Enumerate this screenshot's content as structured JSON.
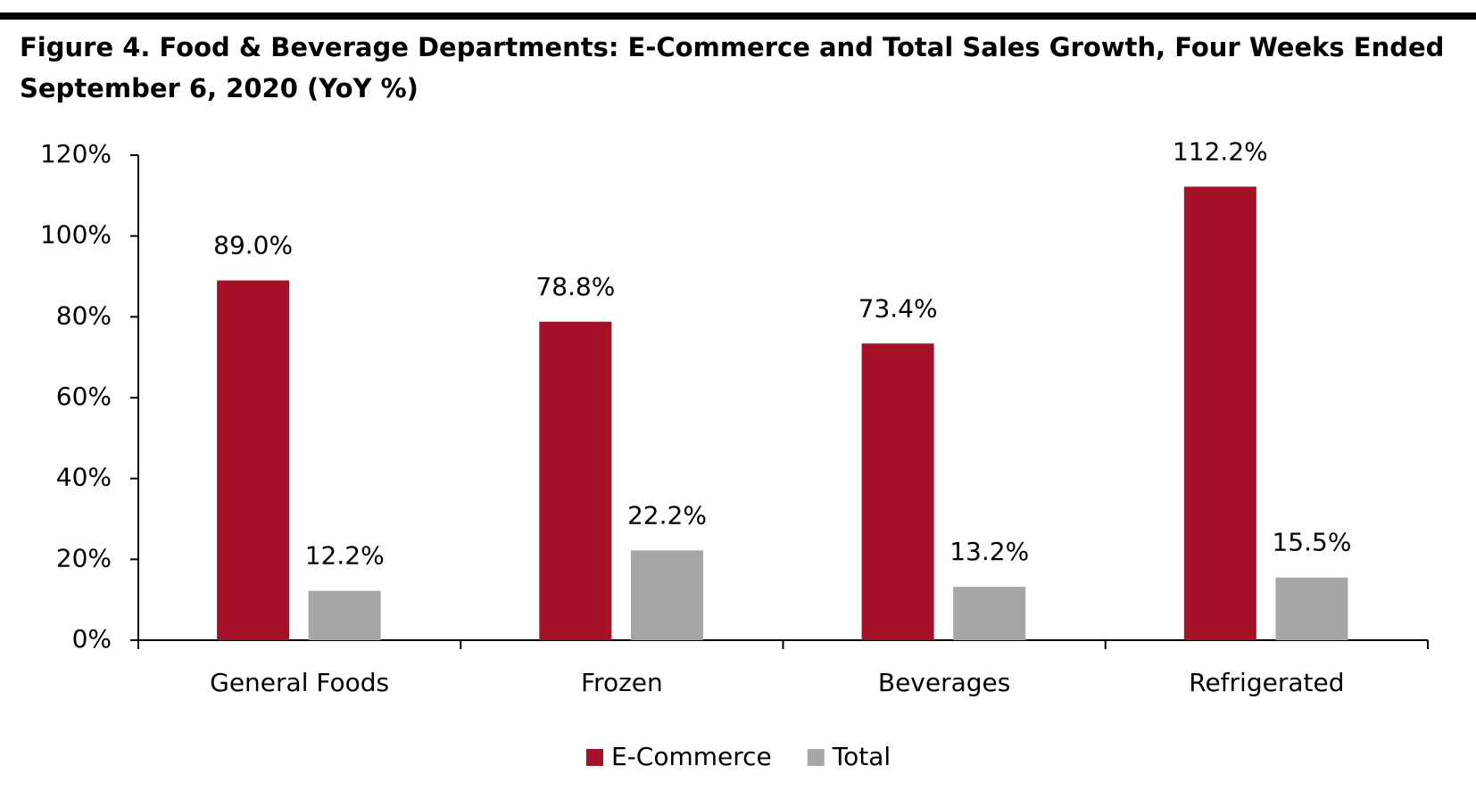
{
  "chart_data": {
    "type": "bar",
    "title": "Figure 4. Food & Beverage Departments: E-Commerce and Total Sales Growth, Four Weeks Ended September 6, 2020 (YoY %)",
    "categories": [
      "General Foods",
      "Frozen",
      "Beverages",
      "Refrigerated"
    ],
    "series": [
      {
        "name": "E-Commerce",
        "color": "#a6112a",
        "values": [
          89.0,
          78.8,
          73.4,
          112.2
        ],
        "value_labels": [
          "89.0%",
          "78.8%",
          "73.4%",
          "112.2%"
        ]
      },
      {
        "name": "Total",
        "color": "#a6a6a6",
        "values": [
          12.2,
          22.2,
          13.2,
          15.5
        ],
        "value_labels": [
          "12.2%",
          "22.2%",
          "13.2%",
          "15.5%"
        ]
      }
    ],
    "ylim": [
      0,
      120
    ],
    "yticks": [
      {
        "value": 0,
        "label": "0%"
      },
      {
        "value": 20,
        "label": "20%"
      },
      {
        "value": 40,
        "label": "40%"
      },
      {
        "value": 60,
        "label": "60%"
      },
      {
        "value": 80,
        "label": "80%"
      },
      {
        "value": 100,
        "label": "100%"
      },
      {
        "value": 120,
        "label": "120%"
      }
    ],
    "grid": false,
    "legend": "bottom"
  }
}
